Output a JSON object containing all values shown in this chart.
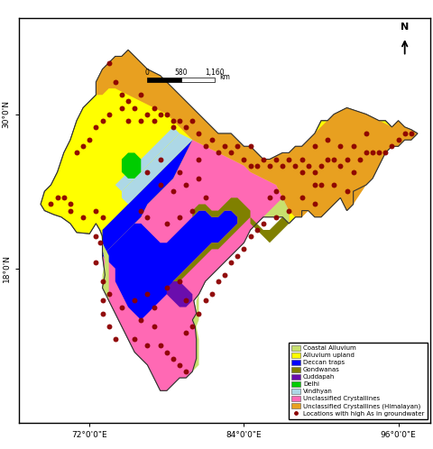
{
  "legend_items": [
    {
      "label": "Coastal Alluvium",
      "color": "#c8e06e"
    },
    {
      "label": "Alluvium upland",
      "color": "#ffff00"
    },
    {
      "label": "Deccan traps",
      "color": "#0000ff"
    },
    {
      "label": "Gondwanas",
      "color": "#808000"
    },
    {
      "label": "Cuddapah",
      "color": "#6a0dad"
    },
    {
      "label": "Delhi",
      "color": "#00cc00"
    },
    {
      "label": "Vindhyan",
      "color": "#add8e6"
    },
    {
      "label": "Unclassified Crystallines",
      "color": "#ff69b4"
    },
    {
      "label": "Unclassified Crystallines (Himalayan)",
      "color": "#e8a020"
    },
    {
      "label": "Locations with high As in groundwater",
      "color": "#8b0000"
    }
  ],
  "xlim": [
    66.5,
    98.5
  ],
  "ylim": [
    6.0,
    37.5
  ],
  "xticks": [
    72,
    84,
    96
  ],
  "yticks": [
    18,
    30
  ],
  "dot_color": "#8b0000",
  "dot_size": 18,
  "dot_alpha": 0.95
}
